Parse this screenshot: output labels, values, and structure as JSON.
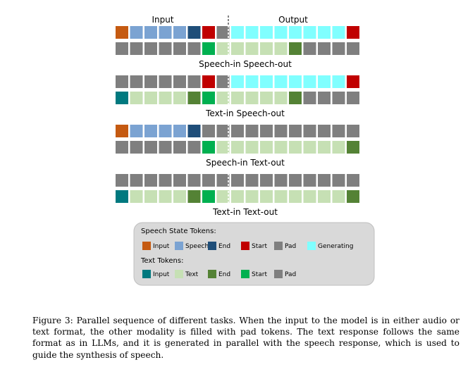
{
  "colors": {
    "orange": "#c55a11",
    "light_blue": "#7ba3d2",
    "dark_blue": "#1f4e79",
    "red": "#c00000",
    "gray": "#7f7f7f",
    "cyan": "#80ffff",
    "teal": "#00797f",
    "light_green": "#c6e0b4",
    "dark_green": "#548235",
    "bright_green": "#00b050"
  },
  "header": {
    "input_label": "Input",
    "output_label": "Output"
  },
  "tasks": [
    {
      "title": "Speech-in Speech-out",
      "speech_row": [
        "orange",
        "light_blue",
        "light_blue",
        "light_blue",
        "light_blue",
        "dark_blue",
        "red",
        "gray",
        "cyan",
        "cyan",
        "cyan",
        "cyan",
        "cyan",
        "cyan",
        "cyan",
        "cyan",
        "red"
      ],
      "text_row": [
        "gray",
        "gray",
        "gray",
        "gray",
        "gray",
        "gray",
        "bright_green",
        "light_green",
        "light_green",
        "light_green",
        "light_green",
        "light_green",
        "dark_green",
        "gray",
        "gray",
        "gray",
        "gray"
      ]
    },
    {
      "title": "Text-in Speech-out",
      "speech_row": [
        "gray",
        "gray",
        "gray",
        "gray",
        "gray",
        "gray",
        "red",
        "gray",
        "cyan",
        "cyan",
        "cyan",
        "cyan",
        "cyan",
        "cyan",
        "cyan",
        "cyan",
        "red"
      ],
      "text_row": [
        "teal",
        "light_green",
        "light_green",
        "light_green",
        "light_green",
        "dark_green",
        "bright_green",
        "light_green",
        "light_green",
        "light_green",
        "light_green",
        "light_green",
        "dark_green",
        "gray",
        "gray",
        "gray",
        "gray"
      ]
    },
    {
      "title": "Speech-in Text-out",
      "speech_row": [
        "orange",
        "light_blue",
        "light_blue",
        "light_blue",
        "light_blue",
        "dark_blue",
        "gray",
        "gray",
        "gray",
        "gray",
        "gray",
        "gray",
        "gray",
        "gray",
        "gray",
        "gray",
        "gray"
      ],
      "text_row": [
        "gray",
        "gray",
        "gray",
        "gray",
        "gray",
        "gray",
        "bright_green",
        "light_green",
        "light_green",
        "light_green",
        "light_green",
        "light_green",
        "light_green",
        "light_green",
        "light_green",
        "light_green",
        "dark_green"
      ]
    },
    {
      "title": "Text-in Text-out",
      "speech_row": [
        "gray",
        "gray",
        "gray",
        "gray",
        "gray",
        "gray",
        "gray",
        "gray",
        "gray",
        "gray",
        "gray",
        "gray",
        "gray",
        "gray",
        "gray",
        "gray",
        "gray"
      ],
      "text_row": [
        "teal",
        "light_green",
        "light_green",
        "light_green",
        "light_green",
        "dark_green",
        "bright_green",
        "light_green",
        "light_green",
        "light_green",
        "light_green",
        "light_green",
        "light_green",
        "light_green",
        "light_green",
        "light_green",
        "dark_green"
      ]
    }
  ],
  "legend": {
    "speech_title": "Speech State Tokens:",
    "speech_items": [
      {
        "label": "Input",
        "color": "orange"
      },
      {
        "label": "Speech",
        "color": "light_blue"
      },
      {
        "label": "End",
        "color": "dark_blue"
      },
      {
        "label": "Start",
        "color": "red"
      },
      {
        "label": "Pad",
        "color": "gray"
      },
      {
        "label": "Generating",
        "color": "cyan"
      }
    ],
    "text_title": "Text Tokens:",
    "text_items": [
      {
        "label": "Input",
        "color": "teal"
      },
      {
        "label": "Text",
        "color": "light_green"
      },
      {
        "label": "End",
        "color": "dark_green"
      },
      {
        "label": "Start",
        "color": "bright_green"
      },
      {
        "label": "Pad",
        "color": "gray"
      }
    ]
  },
  "caption": "Figure 3: Parallel sequence of different tasks. When the input to the model is in either audio or text format, the other modality is filled with pad tokens. The text response follows the same format as in LLMs, and it is generated in parallel with the speech response, which is used to guide the synthesis of speech."
}
